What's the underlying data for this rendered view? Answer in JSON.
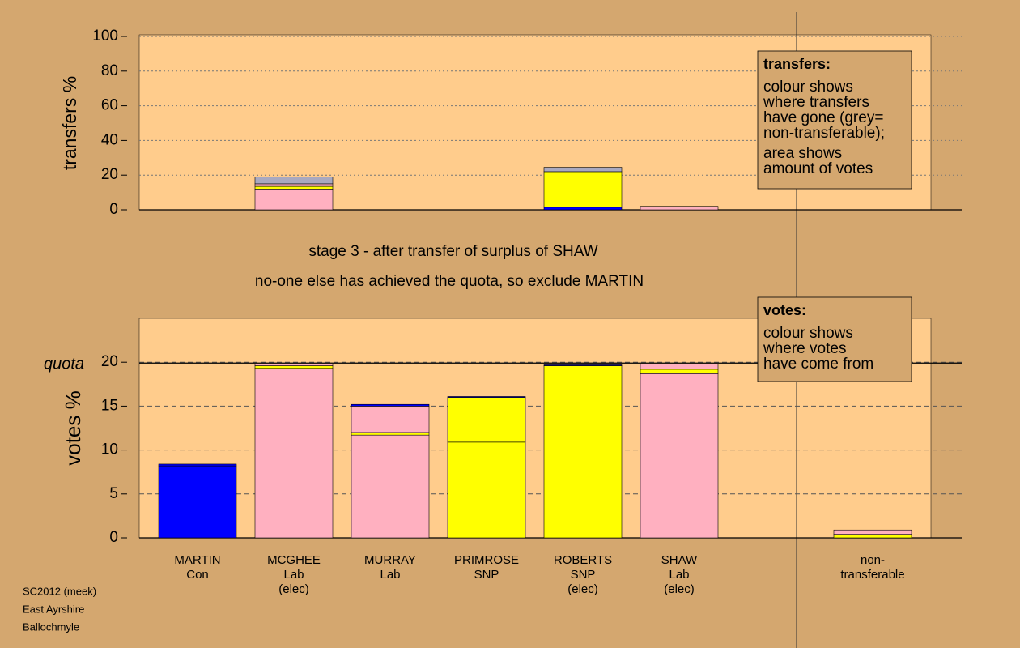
{
  "chart_data": [
    {
      "type": "stacked-bar",
      "y_label": "transfers %",
      "ylim": [
        0,
        100
      ],
      "yticks": [
        0,
        20,
        40,
        60,
        80,
        100
      ],
      "grid": true,
      "series": [
        {
          "values": [
            0,
            12,
            0,
            0,
            1.5,
            2,
            0
          ],
          "colors": [
            "#ffb0c0",
            "#ffb0c0",
            "#ffb0c0",
            "#ffb0c0",
            "#0000ff",
            "#ffb0c0",
            "#ffb0c0"
          ]
        },
        {
          "values": [
            0,
            1.5,
            0,
            0,
            20.5,
            0,
            0
          ],
          "colors": [
            "#ffff00",
            "#ffff00",
            "#ffff00",
            "#ffff00",
            "#ffff00",
            "#ffff00",
            "#ffff00"
          ]
        },
        {
          "values": [
            0,
            1.5,
            0,
            0,
            0,
            0,
            0
          ],
          "colors": [
            "#ffb0c0",
            "#ffb0c0",
            "#ffb0c0",
            "#ffb0c0",
            "#ffb0c0",
            "#ffb0c0",
            "#ffb0c0"
          ]
        },
        {
          "values": [
            0,
            4,
            0,
            0,
            2.5,
            0,
            0
          ],
          "colors": [
            "#a9a9c0",
            "#a9a9c0",
            "#a9a9c0",
            "#a9a9c0",
            "#a9a9c0",
            "#a9a9c0",
            "#a9a9c0"
          ]
        }
      ],
      "box": {
        "title": "transfers:",
        "lines": [
          "colour shows",
          "where transfers",
          "have gone (grey=",
          "non-transferable);",
          "area shows",
          "amount of votes"
        ]
      }
    },
    {
      "type": "stacked-bar",
      "y_label": "votes %",
      "categories": [
        [
          "MARTIN",
          "Con"
        ],
        [
          "MCGHEE",
          "Lab",
          "(elec)"
        ],
        [
          "MURRAY",
          "Lab"
        ],
        [
          "PRIMROSE",
          "SNP"
        ],
        [
          "ROBERTS",
          "SNP",
          "(elec)"
        ],
        [
          "SHAW",
          "Lab",
          "(elec)"
        ],
        [
          "non-",
          "transferable"
        ]
      ],
      "ylim": [
        0,
        25
      ],
      "yticks": [
        0,
        5,
        10,
        15,
        20
      ],
      "grid": true,
      "quota": 19.9,
      "quota_label": "quota",
      "series": [
        {
          "values": [
            8.2,
            19.3,
            11.7,
            10.9,
            19.6,
            18.7,
            0
          ],
          "colors": [
            "#0000ff",
            "#ffb0c0",
            "#ffb0c0",
            "#ffff00",
            "#ffff00",
            "#ffb0c0",
            "#ffb0c0"
          ]
        },
        {
          "values": [
            0.2,
            0.3,
            0.3,
            5.1,
            0.1,
            0.5,
            0.4
          ],
          "colors": [
            "#0000ff",
            "#ffff00",
            "#ffff00",
            "#ffff00",
            "#0000ff",
            "#ffff00",
            "#ffff00"
          ]
        },
        {
          "values": [
            0,
            0.2,
            3,
            0.1,
            0,
            0.6,
            0.5
          ],
          "colors": [
            "#ffb0c0",
            "#ffb0c0",
            "#ffb0c0",
            "#0000ff",
            "#ffb0c0",
            "#ffb0c0",
            "#ffb0c0"
          ]
        },
        {
          "values": [
            0,
            0,
            0.2,
            0,
            0,
            0,
            0
          ],
          "colors": [
            "#0000ff",
            "#0000ff",
            "#0000ff",
            "#0000ff",
            "#0000ff",
            "#0000ff",
            "#0000ff"
          ]
        }
      ],
      "box": {
        "title": "votes:",
        "lines": [
          "colour shows",
          "where votes",
          "have come from"
        ]
      }
    }
  ],
  "annotations": [
    "stage 3 - after transfer of surplus of SHAW",
    "no-one else has achieved the quota, so exclude MARTIN"
  ],
  "footer": [
    "SC2012 (meek)",
    "East Ayrshire",
    "Ballochmyle"
  ]
}
